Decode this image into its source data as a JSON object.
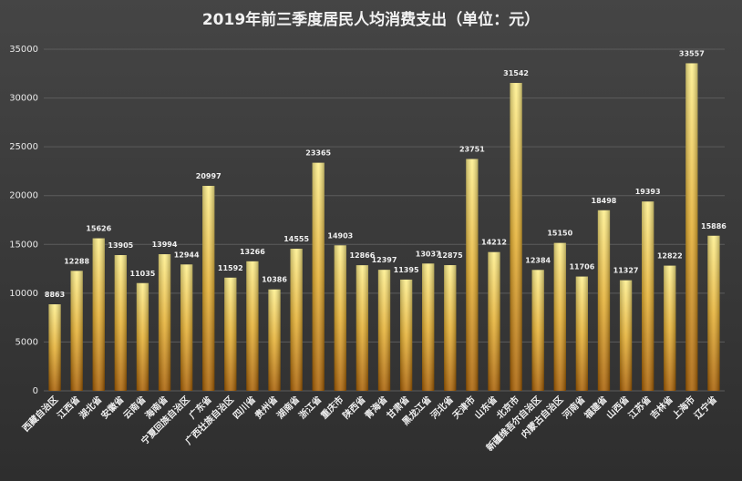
{
  "chart_data": {
    "type": "bar",
    "title": "2019年前三季度居民人均消费支出（单位：元）",
    "categories": [
      "西藏自治区",
      "江西省",
      "湖北省",
      "安徽省",
      "云南省",
      "海南省",
      "宁夏回族自治区",
      "广东省",
      "广西壮族自治区",
      "四川省",
      "贵州省",
      "湖南省",
      "浙江省",
      "重庆市",
      "陕西省",
      "青海省",
      "甘肃省",
      "黑龙江省",
      "河北省",
      "天津市",
      "山东省",
      "北京市",
      "新疆维吾尔自治区",
      "内蒙古自治区",
      "河南省",
      "福建省",
      "山西省",
      "江苏省",
      "吉林省",
      "上海市",
      "辽宁省"
    ],
    "values": [
      8863,
      12288,
      15626,
      13905,
      11035,
      13994,
      12944,
      20997,
      11592,
      13266,
      10386,
      14555,
      23365,
      14903,
      12866,
      12397,
      11395,
      13037,
      12875,
      23751,
      14212,
      31542,
      12384,
      15150,
      11706,
      18498,
      11327,
      19393,
      12822,
      33557,
      15886
    ],
    "color": "#e8b530",
    "ylim": [
      0,
      35000
    ],
    "yticks": [
      0,
      5000,
      10000,
      15000,
      20000,
      25000,
      30000,
      35000
    ],
    "grid": true
  }
}
